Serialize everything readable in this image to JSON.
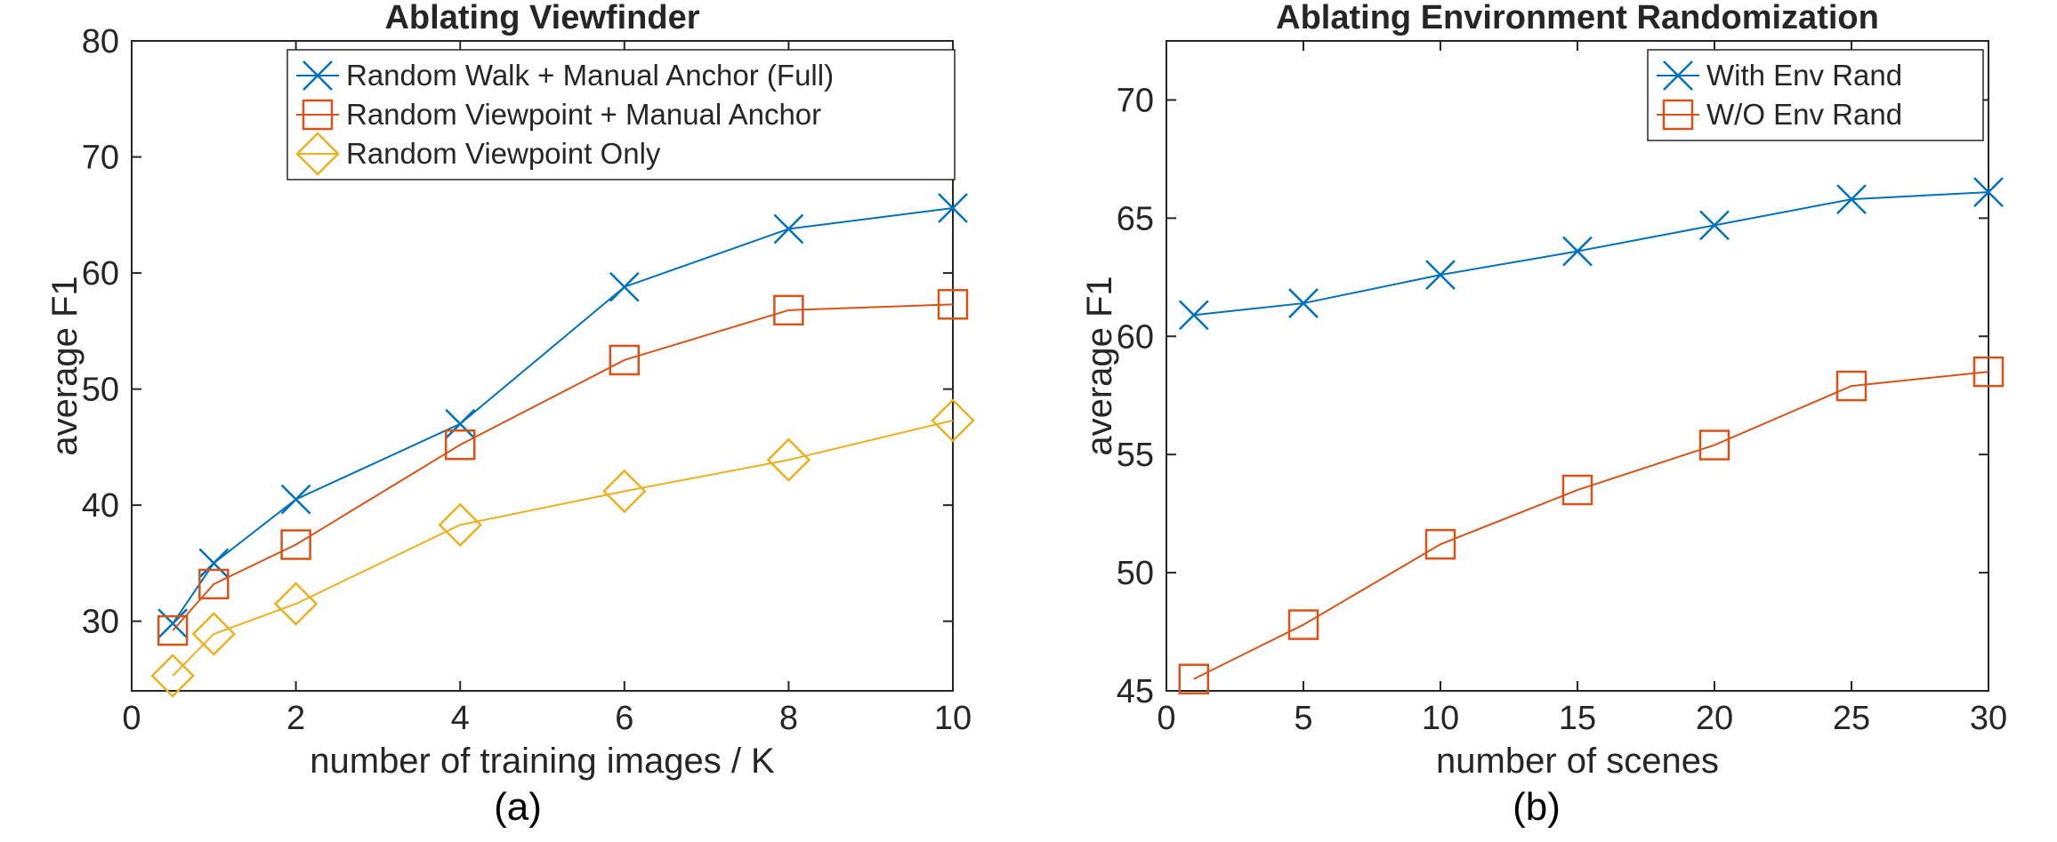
{
  "chart_data": [
    {
      "type": "line",
      "title": "Ablating Viewfinder",
      "xlabel": "number of training images / K",
      "ylabel": "average F1",
      "xlim": [
        0,
        10
      ],
      "ylim": [
        24,
        80
      ],
      "xticks": [
        0,
        2,
        4,
        6,
        8,
        10
      ],
      "yticks": [
        30,
        40,
        50,
        60,
        70,
        80
      ],
      "xtick_labels": [
        "0",
        "2",
        "4",
        "6",
        "8",
        "10"
      ],
      "ytick_labels": [
        "30",
        "40",
        "50",
        "60",
        "70",
        "80"
      ],
      "legend_position": "top-right",
      "caption": "(a)",
      "series": [
        {
          "name": "Random Walk + Manual Anchor (Full)",
          "color": "#0072BD",
          "marker": "x",
          "x": [
            0.5,
            1,
            2,
            4,
            6,
            8,
            10
          ],
          "y": [
            29.8,
            35.0,
            40.5,
            47.0,
            58.8,
            63.8,
            65.6
          ]
        },
        {
          "name": "Random Viewpoint + Manual Anchor",
          "color": "#D95319",
          "marker": "square",
          "x": [
            0.5,
            1,
            2,
            4,
            6,
            8,
            10
          ],
          "y": [
            29.2,
            33.2,
            36.6,
            45.2,
            52.5,
            56.8,
            57.3
          ]
        },
        {
          "name": "Random Viewpoint Only",
          "color": "#EDB120",
          "marker": "diamond",
          "x": [
            0.5,
            1,
            2,
            4,
            6,
            8,
            10
          ],
          "y": [
            25.3,
            28.9,
            31.5,
            38.3,
            41.2,
            43.9,
            47.3
          ]
        }
      ]
    },
    {
      "type": "line",
      "title": "Ablating Environment Randomization",
      "xlabel": "number of scenes",
      "ylabel": "average F1",
      "xlim": [
        0,
        30
      ],
      "ylim": [
        45,
        72.5
      ],
      "xticks": [
        0,
        5,
        10,
        15,
        20,
        25,
        30
      ],
      "yticks": [
        45,
        50,
        55,
        60,
        65,
        70
      ],
      "xtick_labels": [
        "0",
        "5",
        "10",
        "15",
        "20",
        "25",
        "30"
      ],
      "ytick_labels": [
        "45",
        "50",
        "55",
        "60",
        "65",
        "70"
      ],
      "legend_position": "top-right",
      "caption": "(b)",
      "series": [
        {
          "name": "With Env Rand",
          "color": "#0072BD",
          "marker": "x",
          "x": [
            1,
            5,
            10,
            15,
            20,
            25,
            30
          ],
          "y": [
            60.9,
            61.4,
            62.6,
            63.6,
            64.7,
            65.8,
            66.1
          ]
        },
        {
          "name": "W/O Env Rand",
          "color": "#D95319",
          "marker": "square",
          "x": [
            1,
            5,
            10,
            15,
            20,
            25,
            30
          ],
          "y": [
            45.5,
            47.8,
            51.2,
            53.5,
            55.4,
            57.9,
            58.5
          ]
        }
      ]
    }
  ]
}
